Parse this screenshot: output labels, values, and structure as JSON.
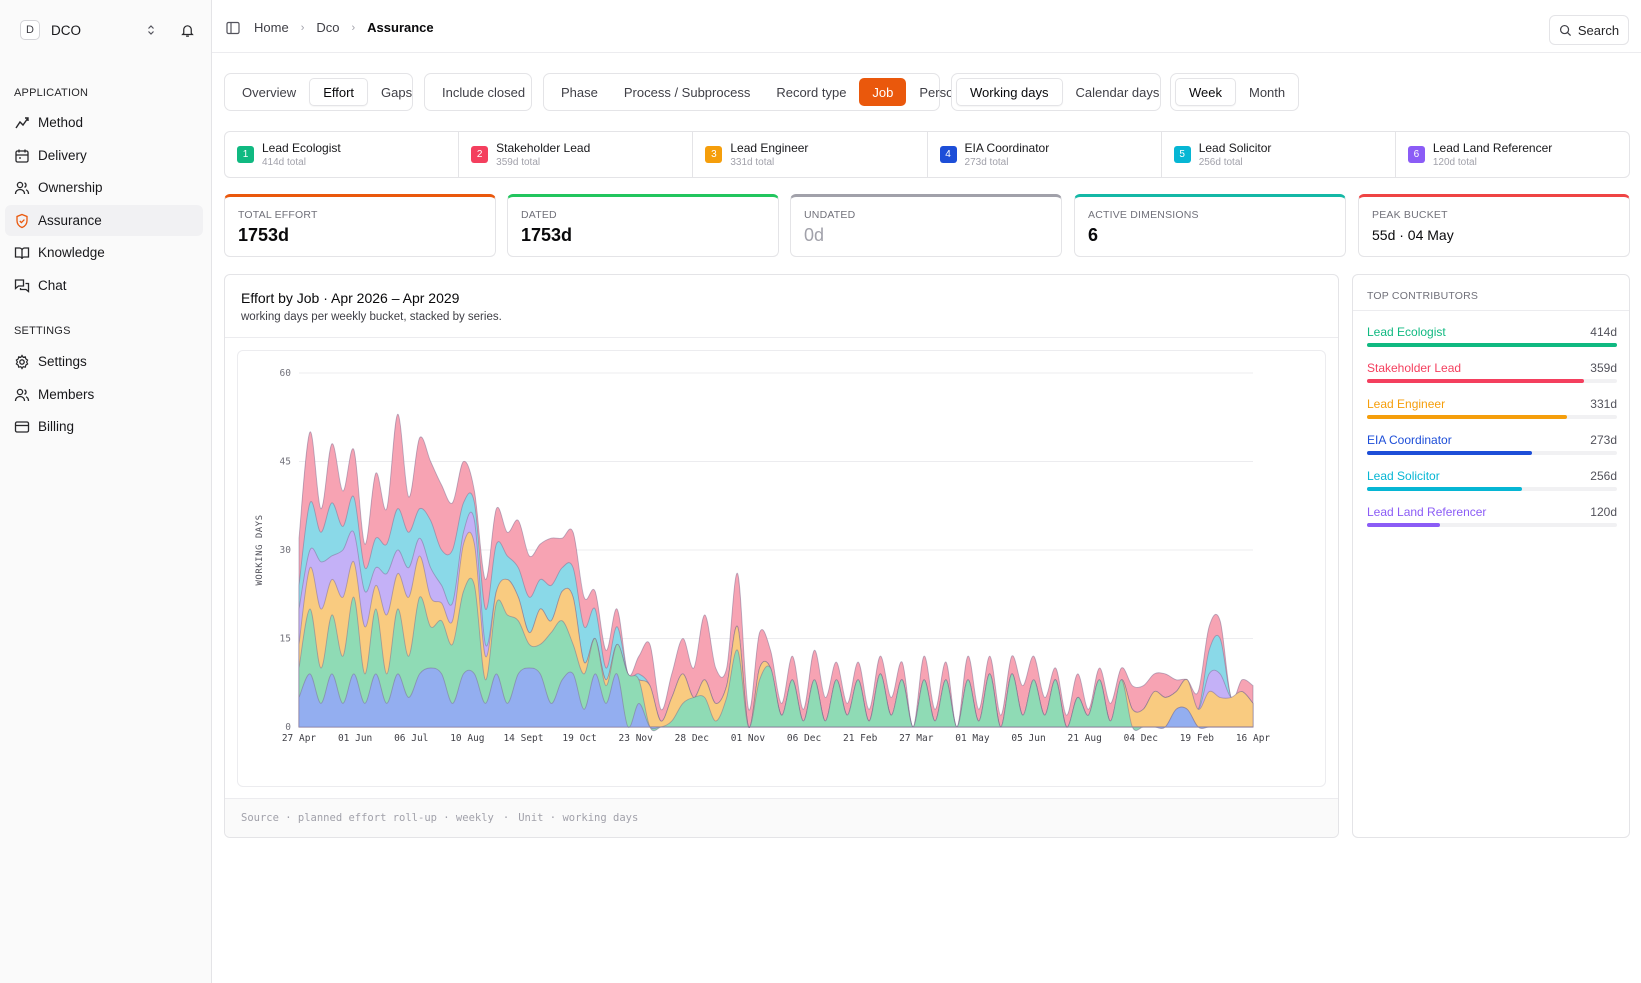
{
  "sidebar": {
    "workspace": {
      "initial": "D",
      "name": "DCO"
    },
    "sections": [
      {
        "label": "APPLICATION",
        "items": [
          {
            "label": "Method",
            "icon": "method-icon"
          },
          {
            "label": "Delivery",
            "icon": "calendar-icon"
          },
          {
            "label": "Ownership",
            "icon": "users-icon"
          },
          {
            "label": "Assurance",
            "icon": "shield-icon",
            "active": true
          },
          {
            "label": "Knowledge",
            "icon": "book-icon"
          },
          {
            "label": "Chat",
            "icon": "chat-icon"
          }
        ]
      },
      {
        "label": "SETTINGS",
        "items": [
          {
            "label": "Settings",
            "icon": "gear-icon"
          },
          {
            "label": "Members",
            "icon": "users-icon"
          },
          {
            "label": "Billing",
            "icon": "card-icon"
          }
        ]
      }
    ]
  },
  "breadcrumb": [
    "Home",
    "Dco",
    "Assurance"
  ],
  "search_label": "Search",
  "filters": {
    "view": {
      "options": [
        "Overview",
        "Effort",
        "Gaps"
      ],
      "selected": "Effort"
    },
    "include_closed": "Include closed",
    "dimension": {
      "options": [
        "Phase",
        "Process / Subprocess",
        "Record type",
        "Job",
        "Person"
      ],
      "selected": "Job"
    },
    "days": {
      "options": [
        "Working days",
        "Calendar days"
      ],
      "selected": "Working days"
    },
    "bucket": {
      "options": [
        "Week",
        "Month"
      ],
      "selected": "Week"
    }
  },
  "legend": [
    {
      "num": "1",
      "name": "Lead Ecologist",
      "total": "414d total",
      "color": "#10b981"
    },
    {
      "num": "2",
      "name": "Stakeholder Lead",
      "total": "359d total",
      "color": "#f43f5e"
    },
    {
      "num": "3",
      "name": "Lead Engineer",
      "total": "331d total",
      "color": "#f59e0b"
    },
    {
      "num": "4",
      "name": "EIA Coordinator",
      "total": "273d total",
      "color": "#1d4ed8"
    },
    {
      "num": "5",
      "name": "Lead Solicitor",
      "total": "256d total",
      "color": "#06b6d4"
    },
    {
      "num": "6",
      "name": "Lead Land Referencer",
      "total": "120d total",
      "color": "#8b5cf6"
    }
  ],
  "kpis": [
    {
      "label": "TOTAL EFFORT",
      "value": "1753d",
      "color": "#ea580c"
    },
    {
      "label": "DATED",
      "value": "1753d",
      "color": "#22c55e"
    },
    {
      "label": "UNDATED",
      "value": "0d",
      "color": "#a1a1aa"
    },
    {
      "label": "ACTIVE DIMENSIONS",
      "value": "6",
      "color": "#14b8a6"
    },
    {
      "label": "PEAK BUCKET",
      "value": "55d · 04 May",
      "color": "#ef4444"
    }
  ],
  "chart": {
    "title": "Effort by Job · Apr 2026 – Apr 2029",
    "subtitle": "working days per weekly bucket, stacked by series.",
    "footer_source": "Source · planned effort roll-up · weekly",
    "footer_unit": "Unit · working days"
  },
  "chart_data": {
    "type": "area",
    "stacked": true,
    "ylabel": "WORKING DAYS",
    "ylim": [
      0,
      60
    ],
    "yticks": [
      0,
      15,
      30,
      45,
      60
    ],
    "xticks": [
      "27 Apr",
      "01 Jun",
      "06 Jul",
      "10 Aug",
      "14 Sept",
      "19 Oct",
      "23 Nov",
      "28 Dec",
      "01 Nov",
      "06 Dec",
      "21 Feb",
      "27 Mar",
      "01 May",
      "05 Jun",
      "21 Aug",
      "04 Dec",
      "19 Feb",
      "16 Apr"
    ],
    "x": [
      0,
      1,
      2,
      3,
      4,
      5,
      6,
      7,
      8,
      9,
      10,
      11,
      12,
      13,
      14,
      15,
      16,
      17,
      18,
      19,
      20,
      21,
      22,
      23,
      24,
      25,
      26,
      27,
      28,
      29,
      30,
      31,
      32,
      33,
      34,
      35,
      36,
      37,
      38,
      39,
      40,
      41,
      42,
      43,
      44,
      45,
      46,
      47,
      48,
      49,
      50,
      51,
      52,
      53,
      54,
      55,
      56,
      57,
      58,
      59,
      60,
      61,
      62,
      63,
      64,
      65,
      66,
      67,
      68,
      69,
      70,
      71,
      72,
      73,
      74,
      75,
      76,
      77,
      78,
      79,
      80,
      81,
      82,
      83,
      84,
      85,
      86,
      87
    ],
    "series": [
      {
        "name": "EIA Coordinator",
        "color": "#93aef0",
        "values": [
          5,
          9,
          4,
          9,
          4,
          9,
          4,
          9,
          4,
          9,
          5,
          9,
          10,
          9,
          4,
          9,
          9,
          4,
          9,
          4,
          9,
          10,
          9,
          4,
          8,
          9,
          3,
          9,
          4,
          9,
          0,
          4,
          0,
          0,
          0,
          0,
          0,
          0,
          0,
          0,
          0,
          0,
          0,
          0,
          0,
          0,
          0,
          0,
          0,
          0,
          0,
          0,
          0,
          0,
          0,
          0,
          0,
          0,
          0,
          0,
          0,
          0,
          0,
          0,
          0,
          0,
          0,
          0,
          0,
          0,
          0,
          0,
          0,
          0,
          0,
          0,
          0,
          0,
          0,
          0,
          3,
          3,
          0,
          0,
          0,
          0,
          0,
          0
        ]
      },
      {
        "name": "Lead Ecologist",
        "color": "#8fdbb5",
        "values": [
          5,
          11,
          6,
          10,
          8,
          13,
          5,
          11,
          5,
          11,
          7,
          13,
          7,
          9,
          10,
          14,
          15,
          4,
          12,
          15,
          9,
          4,
          5,
          12,
          10,
          5,
          6,
          6,
          3,
          5,
          9,
          4,
          0,
          0,
          1,
          4,
          5,
          5,
          1,
          5,
          13,
          0,
          8,
          10,
          2,
          8,
          1,
          8,
          1,
          8,
          2,
          8,
          1,
          9,
          2,
          8,
          0,
          8,
          1,
          8,
          0,
          8,
          1,
          9,
          0,
          9,
          2,
          8,
          2,
          8,
          0,
          5,
          2,
          8,
          1,
          8,
          0,
          0,
          0,
          0,
          0,
          0,
          0,
          0,
          0,
          0,
          0,
          0
        ]
      },
      {
        "name": "Lead Engineer",
        "color": "#f9cb80",
        "values": [
          4,
          7,
          10,
          6,
          10,
          6,
          8,
          4,
          10,
          6,
          10,
          7,
          5,
          3,
          4,
          8,
          7,
          4,
          2,
          6,
          4,
          2,
          6,
          2,
          5,
          8,
          2,
          0,
          1,
          0,
          0,
          0,
          7,
          1,
          4,
          5,
          0,
          3,
          3,
          2,
          4,
          0,
          2,
          0,
          0,
          0,
          0,
          0,
          0,
          0,
          0,
          0,
          0,
          0,
          0,
          0,
          0,
          0,
          0,
          0,
          0,
          0,
          0,
          0,
          0,
          0,
          0,
          0,
          0,
          0,
          0,
          0,
          0,
          0,
          0,
          0,
          3,
          3,
          6,
          5,
          3,
          5,
          3,
          6,
          5,
          5,
          6,
          4
        ]
      },
      {
        "name": "Lead Land Referencer",
        "color": "#c4b1f7",
        "values": [
          6,
          3,
          8,
          4,
          8,
          5,
          6,
          3,
          7,
          4,
          5,
          3,
          5,
          3,
          3,
          2,
          4,
          2,
          0,
          0,
          0,
          0,
          0,
          0,
          0,
          0,
          0,
          0,
          0,
          0,
          0,
          0,
          0,
          0,
          0,
          0,
          0,
          0,
          0,
          0,
          0,
          0,
          0,
          0,
          0,
          0,
          0,
          0,
          0,
          0,
          0,
          0,
          0,
          0,
          0,
          0,
          0,
          0,
          0,
          0,
          0,
          0,
          0,
          0,
          0,
          0,
          0,
          0,
          0,
          0,
          0,
          0,
          0,
          0,
          0,
          0,
          0,
          0,
          0,
          0,
          0,
          0,
          0,
          3,
          4,
          0,
          0,
          0
        ]
      },
      {
        "name": "Lead Solicitor",
        "color": "#8ad9e8",
        "values": [
          4,
          8,
          5,
          9,
          4,
          6,
          4,
          5,
          5,
          7,
          6,
          5,
          8,
          6,
          9,
          5,
          3,
          6,
          8,
          4,
          5,
          6,
          5,
          6,
          4,
          5,
          6,
          5,
          2,
          3,
          0,
          1,
          0,
          0,
          0,
          0,
          0,
          0,
          0,
          0,
          0,
          0,
          0,
          0,
          0,
          0,
          0,
          0,
          0,
          0,
          0,
          0,
          0,
          0,
          0,
          0,
          0,
          0,
          0,
          0,
          0,
          0,
          0,
          0,
          0,
          0,
          0,
          0,
          0,
          0,
          0,
          0,
          0,
          0,
          0,
          0,
          0,
          0,
          0,
          0,
          0,
          0,
          0,
          4,
          6,
          0,
          0,
          0
        ]
      },
      {
        "name": "Stakeholder Lead",
        "color": "#f7a3b3",
        "values": [
          8,
          12,
          4,
          10,
          6,
          8,
          4,
          11,
          6,
          16,
          6,
          12,
          10,
          11,
          8,
          7,
          2,
          5,
          6,
          4,
          8,
          7,
          6,
          8,
          5,
          6,
          5,
          3,
          3,
          3,
          0,
          3,
          7,
          2,
          4,
          6,
          5,
          11,
          6,
          3,
          9,
          3,
          6,
          3,
          2,
          4,
          2,
          5,
          4,
          3,
          2,
          3,
          2,
          3,
          3,
          3,
          0,
          4,
          2,
          3,
          0,
          4,
          2,
          3,
          2,
          3,
          5,
          4,
          3,
          2,
          2,
          4,
          1,
          2,
          3,
          2,
          4,
          4,
          3,
          4,
          2,
          0,
          3,
          4,
          3,
          0,
          2,
          3
        ]
      }
    ]
  },
  "contributors": {
    "heading": "TOP CONTRIBUTORS",
    "items": [
      {
        "name": "Lead Ecologist",
        "value": "414d",
        "share": 1.0,
        "color": "#10b981"
      },
      {
        "name": "Stakeholder Lead",
        "value": "359d",
        "share": 0.867,
        "color": "#f43f5e"
      },
      {
        "name": "Lead Engineer",
        "value": "331d",
        "share": 0.8,
        "color": "#f59e0b"
      },
      {
        "name": "EIA Coordinator",
        "value": "273d",
        "share": 0.66,
        "color": "#1d4ed8"
      },
      {
        "name": "Lead Solicitor",
        "value": "256d",
        "share": 0.618,
        "color": "#06b6d4"
      },
      {
        "name": "Lead Land Referencer",
        "value": "120d",
        "share": 0.29,
        "color": "#8b5cf6"
      }
    ]
  }
}
